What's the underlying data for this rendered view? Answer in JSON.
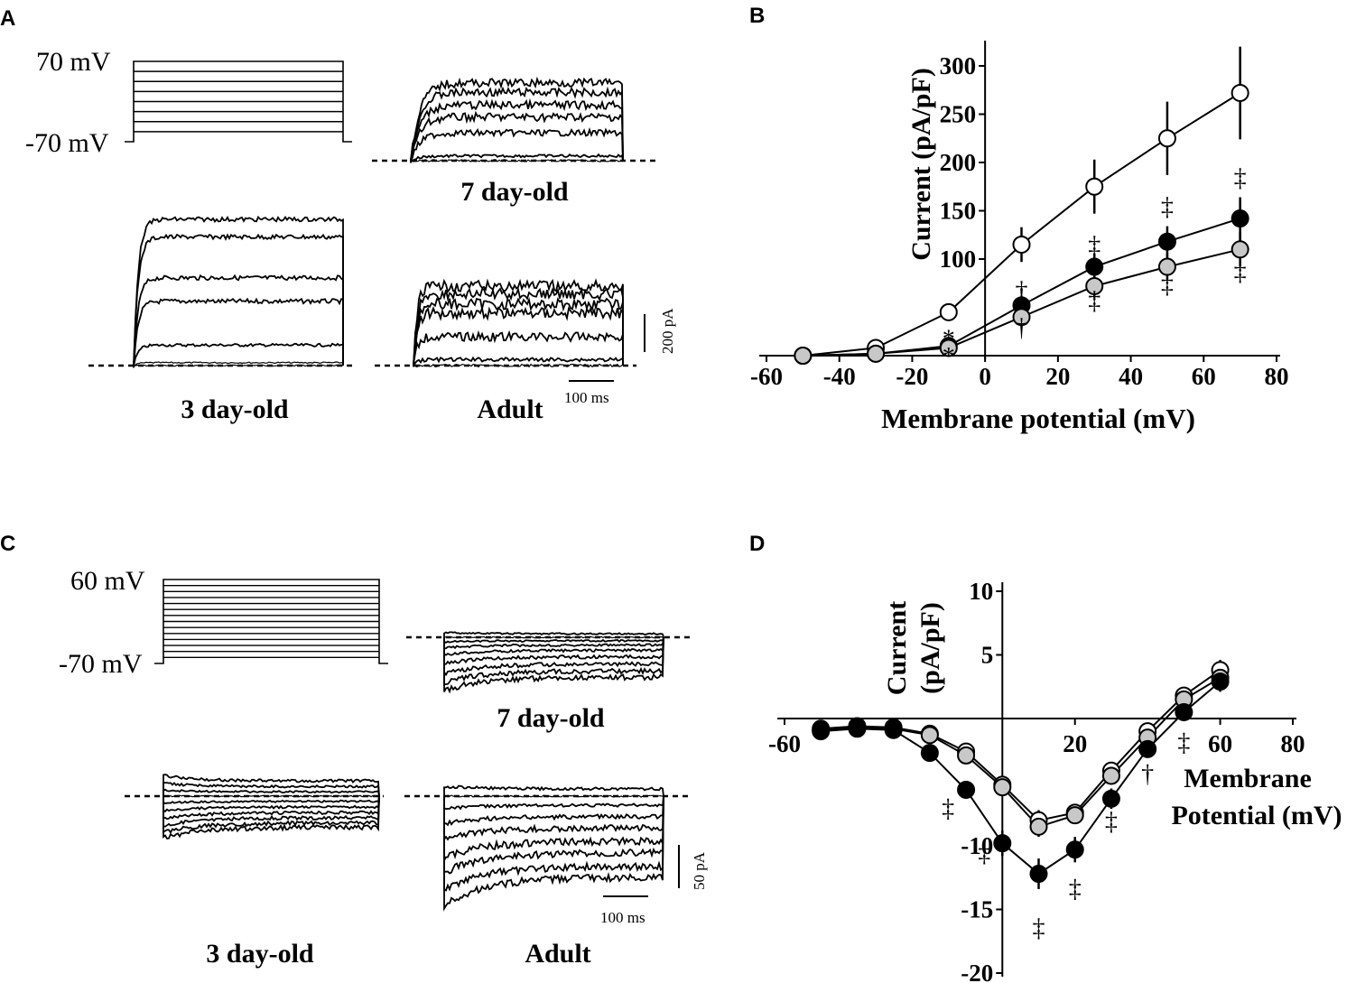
{
  "panel_labels": {
    "a": "A",
    "b": "B",
    "c": "C",
    "d": "D"
  },
  "panelA": {
    "protocol_top": "70 mV",
    "protocol_bottom": "-70 mV",
    "label_7day": "7 day-old",
    "label_3day": "3 day-old",
    "label_adult": "Adult",
    "scale_current": "200 pA",
    "scale_time": "100 ms",
    "trace_levels_3day": [
      0,
      0.02,
      0.14,
      0.44,
      0.6,
      0.88,
      1.0
    ],
    "trace_levels_7day": [
      0,
      0.06,
      0.35,
      0.55,
      0.7,
      0.86,
      0.98
    ],
    "trace_levels_adult": [
      0,
      0.06,
      0.29,
      0.53,
      0.62,
      0.72,
      0.8
    ]
  },
  "panelC": {
    "protocol_top": "60 mV",
    "protocol_bottom": "-70 mV",
    "label_7day": "7 day-old",
    "label_3day": "3 day-old",
    "label_adult": "Adult",
    "scale_current": "50 pA",
    "scale_time": "100 ms",
    "trace_levels_7day": [
      0.08,
      0.0,
      -0.08,
      -0.18,
      -0.3,
      -0.45,
      -0.62,
      -0.78,
      -0.92
    ],
    "trace_levels_3day": [
      0.35,
      0.22,
      0.1,
      0.0,
      -0.12,
      -0.25,
      -0.38,
      -0.5,
      -0.62,
      -0.72
    ],
    "trace_levels_adult": [
      0.16,
      0.0,
      -0.2,
      -0.45,
      -0.7,
      -1.0,
      -1.25,
      -1.55,
      -1.8
    ]
  },
  "chart_data": [
    {
      "type": "line",
      "panel": "B",
      "xlabel": "Membrane potential (mV)",
      "ylabel": "Current (pA/pF)",
      "xlim": [
        -60,
        80
      ],
      "ylim": [
        0,
        320
      ],
      "x_ticks": [
        -60,
        -40,
        -20,
        0,
        20,
        40,
        60,
        80
      ],
      "x_tick_labels": [
        "-60",
        "-40",
        "-20",
        "0",
        "20",
        "40",
        "60",
        "80"
      ],
      "y_ticks": [
        100,
        150,
        200,
        250,
        300
      ],
      "y_tick_labels": [
        "100",
        "150",
        "200",
        "250",
        "300"
      ],
      "x": [
        -50,
        -30,
        -10,
        10,
        30,
        50,
        70
      ],
      "series": [
        {
          "name": "open",
          "color": "#ffffff",
          "values": [
            0,
            8,
            45,
            115,
            175,
            225,
            272
          ],
          "errors": [
            0,
            2,
            4,
            18,
            28,
            38,
            48
          ]
        },
        {
          "name": "black",
          "color": "#000000",
          "values": [
            0,
            2,
            10,
            52,
            92,
            118,
            142
          ],
          "errors": [
            0,
            1,
            3,
            10,
            14,
            16,
            22
          ]
        },
        {
          "name": "grey",
          "color": "#c8c8c8",
          "values": [
            0,
            2,
            8,
            40,
            72,
            92,
            110
          ],
          "errors": [
            0,
            1,
            3,
            8,
            12,
            14,
            18
          ]
        }
      ],
      "annotations": [
        {
          "x": -10,
          "y": 18,
          "text": "*",
          "pos": "above"
        },
        {
          "x": -10,
          "y": 0,
          "text": "*",
          "pos": "below"
        },
        {
          "x": 10,
          "y": 68,
          "text": "†",
          "pos": "above"
        },
        {
          "x": 10,
          "y": 30,
          "text": "†",
          "pos": "below"
        },
        {
          "x": 30,
          "y": 115,
          "text": "‡",
          "pos": "above"
        },
        {
          "x": 30,
          "y": 58,
          "text": "‡",
          "pos": "below"
        },
        {
          "x": 50,
          "y": 155,
          "text": "‡",
          "pos": "above"
        },
        {
          "x": 50,
          "y": 75,
          "text": "‡",
          "pos": "below"
        },
        {
          "x": 70,
          "y": 185,
          "text": "‡",
          "pos": "above"
        },
        {
          "x": 70,
          "y": 88,
          "text": "‡",
          "pos": "below"
        }
      ]
    },
    {
      "type": "line",
      "panel": "D",
      "xlabel_line1": "Membrane",
      "xlabel_line2": "Potential (mV)",
      "ylabel_line1": "Current",
      "ylabel_line2": "(pA/pF)",
      "xlim": [
        -60,
        80
      ],
      "ylim": [
        -20,
        10
      ],
      "x_ticks": [
        -60,
        20,
        60,
        80
      ],
      "x_tick_labels": [
        "-60",
        "20",
        "60",
        "80"
      ],
      "y_ticks": [
        10,
        5,
        -10,
        -15,
        -20
      ],
      "y_tick_labels": [
        "10",
        "5",
        "-10",
        "-15",
        "-20"
      ],
      "x": [
        -50,
        -40,
        -30,
        -20,
        -10,
        0,
        10,
        20,
        30,
        40,
        50,
        60
      ],
      "series": [
        {
          "name": "open",
          "color": "#ffffff",
          "values": [
            -0.8,
            -0.6,
            -0.7,
            -1.2,
            -2.6,
            -5.2,
            -8.0,
            -7.4,
            -4.1,
            -1.0,
            1.8,
            3.8
          ],
          "errors": [
            0.2,
            0.2,
            0.2,
            0.3,
            0.5,
            0.6,
            0.8,
            0.7,
            0.6,
            0.5,
            0.6,
            0.8
          ]
        },
        {
          "name": "grey",
          "color": "#c8c8c8",
          "values": [
            -0.9,
            -0.7,
            -0.8,
            -1.3,
            -2.9,
            -5.4,
            -8.5,
            -7.6,
            -4.5,
            -1.5,
            1.5,
            3.2
          ],
          "errors": [
            0.2,
            0.2,
            0.2,
            0.3,
            0.5,
            0.6,
            0.8,
            0.7,
            0.6,
            0.5,
            0.6,
            0.8
          ]
        },
        {
          "name": "black",
          "color": "#000000",
          "values": [
            -1.0,
            -0.8,
            -0.9,
            -2.7,
            -5.6,
            -9.8,
            -12.2,
            -10.3,
            -6.3,
            -2.4,
            0.5,
            2.9
          ],
          "errors": [
            0.2,
            0.2,
            0.2,
            0.4,
            0.7,
            1.0,
            1.2,
            1.0,
            0.8,
            0.6,
            0.6,
            0.8
          ]
        }
      ],
      "annotations": [
        {
          "x": -10,
          "y": -7.0,
          "text": "‡",
          "pos": "left"
        },
        {
          "x": 0,
          "y": -10.5,
          "text": "‡",
          "pos": "left"
        },
        {
          "x": 10,
          "y": -16.4,
          "text": "‡",
          "pos": "below"
        },
        {
          "x": 20,
          "y": -13.3,
          "text": "‡",
          "pos": "below"
        },
        {
          "x": 30,
          "y": -8.0,
          "text": "‡",
          "pos": "below"
        },
        {
          "x": 40,
          "y": -4.3,
          "text": "†",
          "pos": "below"
        },
        {
          "x": 50,
          "y": -1.8,
          "text": "‡",
          "pos": "below"
        }
      ]
    }
  ]
}
